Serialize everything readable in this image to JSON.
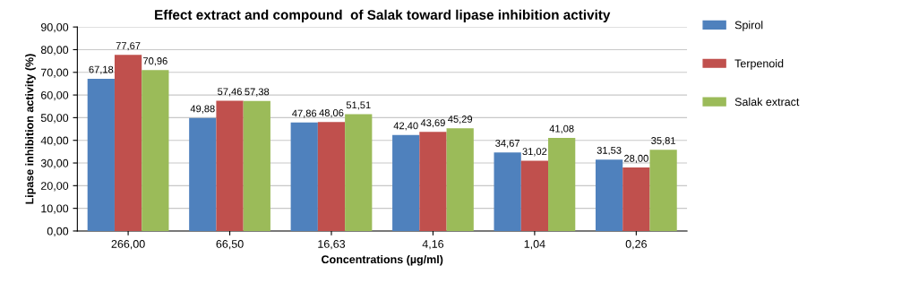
{
  "chart_data": {
    "type": "bar",
    "title": "Effect extract and compound  of Salak toward lipase inhibition activity",
    "xlabel": "Concentrations (µg/ml)",
    "ylabel": "Lipase inhibition activity (%)",
    "categories": [
      "266,00",
      "66,50",
      "16,63",
      "4,16",
      "1,04",
      "0,26"
    ],
    "series": [
      {
        "name": "Spirol",
        "color": "#4f81bd",
        "values": [
          67.18,
          49.88,
          47.86,
          42.4,
          34.67,
          31.53
        ],
        "value_labels": [
          "67,18",
          "49,88",
          "47,86",
          "42,40",
          "34,67",
          "31,53"
        ]
      },
      {
        "name": "Terpenoid",
        "color": "#c0504d",
        "values": [
          77.67,
          57.46,
          48.06,
          43.69,
          31.02,
          28.0
        ],
        "value_labels": [
          "77,67",
          "57,46",
          "48,06",
          "43,69",
          "31,02",
          "28,00"
        ]
      },
      {
        "name": "Salak extract",
        "color": "#9bbb59",
        "values": [
          70.96,
          57.38,
          51.51,
          45.29,
          41.08,
          35.81
        ],
        "value_labels": [
          "70,96",
          "57,38",
          "51,51",
          "45,29",
          "41,08",
          "35,81"
        ]
      }
    ],
    "ylim": [
      0,
      90
    ],
    "yticks": [
      {
        "value": 0,
        "label": "0,00"
      },
      {
        "value": 10,
        "label": "10,00"
      },
      {
        "value": 20,
        "label": "20,00"
      },
      {
        "value": 30,
        "label": "30,00"
      },
      {
        "value": 40,
        "label": "40,00"
      },
      {
        "value": 50,
        "label": "50,00"
      },
      {
        "value": 60,
        "label": "60,00"
      },
      {
        "value": 70,
        "label": "70,00"
      },
      {
        "value": 80,
        "label": "80,00"
      },
      {
        "value": 90,
        "label": "90,00"
      }
    ],
    "grid": "y",
    "legend": "right"
  }
}
